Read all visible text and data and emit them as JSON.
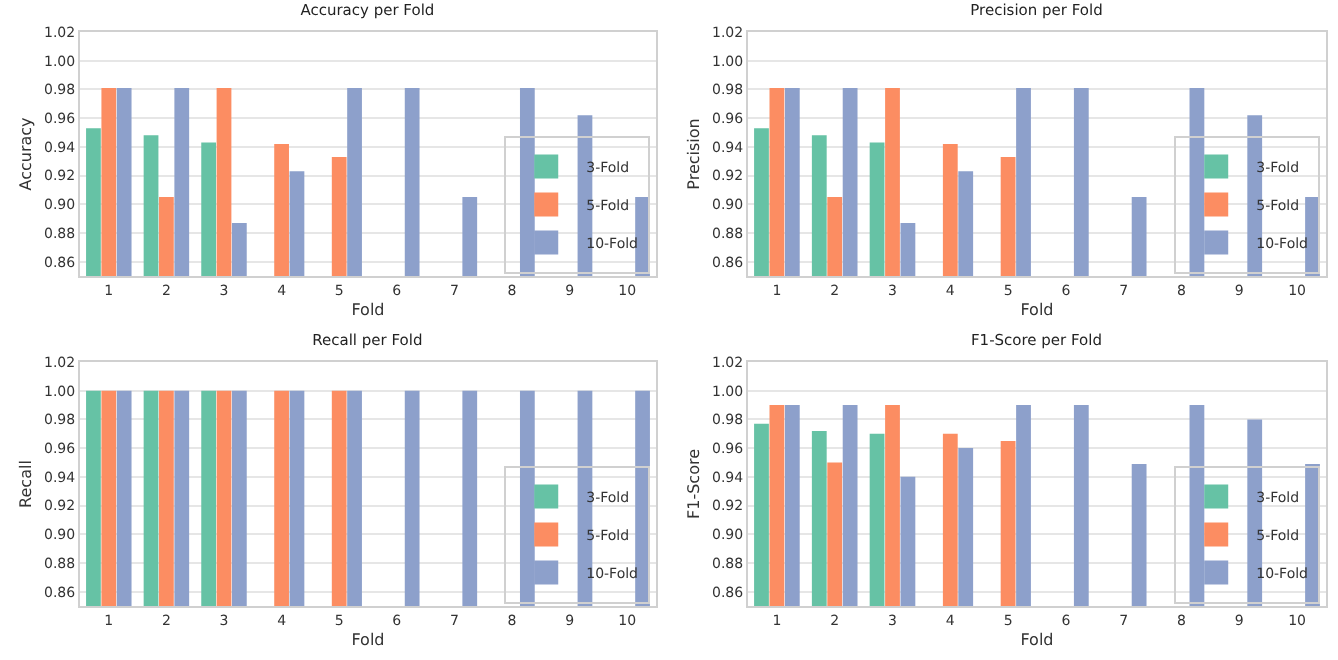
{
  "chart_data": [
    {
      "type": "bar",
      "title": "Accuracy per Fold",
      "xlabel": "Fold",
      "ylabel": "Accuracy",
      "categories": [
        "1",
        "2",
        "3",
        "4",
        "5",
        "6",
        "7",
        "8",
        "9",
        "10"
      ],
      "series": [
        {
          "name": "3-Fold",
          "color": "#66c2a5",
          "values": [
            0.953,
            0.948,
            0.943,
            null,
            null,
            null,
            null,
            null,
            null,
            null
          ]
        },
        {
          "name": "5-Fold",
          "color": "#fc8d62",
          "values": [
            0.981,
            0.905,
            0.981,
            0.942,
            0.933,
            null,
            null,
            null,
            null,
            null
          ]
        },
        {
          "name": "10-Fold",
          "color": "#8da0cb",
          "values": [
            0.981,
            0.981,
            0.887,
            0.923,
            0.981,
            0.981,
            0.905,
            0.981,
            0.962,
            0.905
          ]
        }
      ],
      "ylim": [
        0.85,
        1.02
      ],
      "yticks": [
        {
          "value": 0.86,
          "label": "0.86"
        },
        {
          "value": 0.88,
          "label": "0.88"
        },
        {
          "value": 0.9,
          "label": "0.90"
        },
        {
          "value": 0.92,
          "label": "0.92"
        },
        {
          "value": 0.94,
          "label": "0.94"
        },
        {
          "value": 0.96,
          "label": "0.96"
        },
        {
          "value": 0.98,
          "label": "0.98"
        },
        {
          "value": 1,
          "label": "1.00"
        },
        {
          "value": 1.02,
          "label": "1.02"
        }
      ],
      "grid": "y",
      "legend": "bottom right"
    },
    {
      "type": "bar",
      "title": "Precision per Fold",
      "xlabel": "Fold",
      "ylabel": "Precision",
      "categories": [
        "1",
        "2",
        "3",
        "4",
        "5",
        "6",
        "7",
        "8",
        "9",
        "10"
      ],
      "series": [
        {
          "name": "3-Fold",
          "color": "#66c2a5",
          "values": [
            0.953,
            0.948,
            0.943,
            null,
            null,
            null,
            null,
            null,
            null,
            null
          ]
        },
        {
          "name": "5-Fold",
          "color": "#fc8d62",
          "values": [
            0.981,
            0.905,
            0.981,
            0.942,
            0.933,
            null,
            null,
            null,
            null,
            null
          ]
        },
        {
          "name": "10-Fold",
          "color": "#8da0cb",
          "values": [
            0.981,
            0.981,
            0.887,
            0.923,
            0.981,
            0.981,
            0.905,
            0.981,
            0.962,
            0.905
          ]
        }
      ],
      "ylim": [
        0.85,
        1.02
      ],
      "yticks": [
        {
          "value": 0.86,
          "label": "0.86"
        },
        {
          "value": 0.88,
          "label": "0.88"
        },
        {
          "value": 0.9,
          "label": "0.90"
        },
        {
          "value": 0.92,
          "label": "0.92"
        },
        {
          "value": 0.94,
          "label": "0.94"
        },
        {
          "value": 0.96,
          "label": "0.96"
        },
        {
          "value": 0.98,
          "label": "0.98"
        },
        {
          "value": 1,
          "label": "1.00"
        },
        {
          "value": 1.02,
          "label": "1.02"
        }
      ],
      "grid": "y",
      "legend": "bottom right"
    },
    {
      "type": "bar",
      "title": "Recall per Fold",
      "xlabel": "Fold",
      "ylabel": "Recall",
      "categories": [
        "1",
        "2",
        "3",
        "4",
        "5",
        "6",
        "7",
        "8",
        "9",
        "10"
      ],
      "series": [
        {
          "name": "3-Fold",
          "color": "#66c2a5",
          "values": [
            1,
            1,
            1,
            null,
            null,
            null,
            null,
            null,
            null,
            null
          ]
        },
        {
          "name": "5-Fold",
          "color": "#fc8d62",
          "values": [
            1,
            1,
            1,
            1,
            1,
            null,
            null,
            null,
            null,
            null
          ]
        },
        {
          "name": "10-Fold",
          "color": "#8da0cb",
          "values": [
            1,
            1,
            1,
            1,
            1,
            1,
            1,
            1,
            1,
            1
          ]
        }
      ],
      "ylim": [
        0.85,
        1.02
      ],
      "yticks": [
        {
          "value": 0.86,
          "label": "0.86"
        },
        {
          "value": 0.88,
          "label": "0.88"
        },
        {
          "value": 0.9,
          "label": "0.90"
        },
        {
          "value": 0.92,
          "label": "0.92"
        },
        {
          "value": 0.94,
          "label": "0.94"
        },
        {
          "value": 0.96,
          "label": "0.96"
        },
        {
          "value": 0.98,
          "label": "0.98"
        },
        {
          "value": 1,
          "label": "1.00"
        },
        {
          "value": 1.02,
          "label": "1.02"
        }
      ],
      "grid": "y",
      "legend": "bottom right"
    },
    {
      "type": "bar",
      "title": "F1-Score per Fold",
      "xlabel": "Fold",
      "ylabel": "F1-Score",
      "categories": [
        "1",
        "2",
        "3",
        "4",
        "5",
        "6",
        "7",
        "8",
        "9",
        "10"
      ],
      "series": [
        {
          "name": "3-Fold",
          "color": "#66c2a5",
          "values": [
            0.977,
            0.972,
            0.97,
            null,
            null,
            null,
            null,
            null,
            null,
            null
          ]
        },
        {
          "name": "5-Fold",
          "color": "#fc8d62",
          "values": [
            0.99,
            0.95,
            0.99,
            0.97,
            0.965,
            null,
            null,
            null,
            null,
            null
          ]
        },
        {
          "name": "10-Fold",
          "color": "#8da0cb",
          "values": [
            0.99,
            0.99,
            0.94,
            0.96,
            0.99,
            0.99,
            0.949,
            0.99,
            0.98,
            0.949
          ]
        }
      ],
      "ylim": [
        0.85,
        1.02
      ],
      "yticks": [
        {
          "value": 0.86,
          "label": "0.86"
        },
        {
          "value": 0.88,
          "label": "0.88"
        },
        {
          "value": 0.9,
          "label": "0.90"
        },
        {
          "value": 0.92,
          "label": "0.92"
        },
        {
          "value": 0.94,
          "label": "0.94"
        },
        {
          "value": 0.96,
          "label": "0.96"
        },
        {
          "value": 0.98,
          "label": "0.98"
        },
        {
          "value": 1,
          "label": "1.00"
        },
        {
          "value": 1.02,
          "label": "1.02"
        }
      ],
      "grid": "y",
      "legend": "bottom right"
    }
  ]
}
